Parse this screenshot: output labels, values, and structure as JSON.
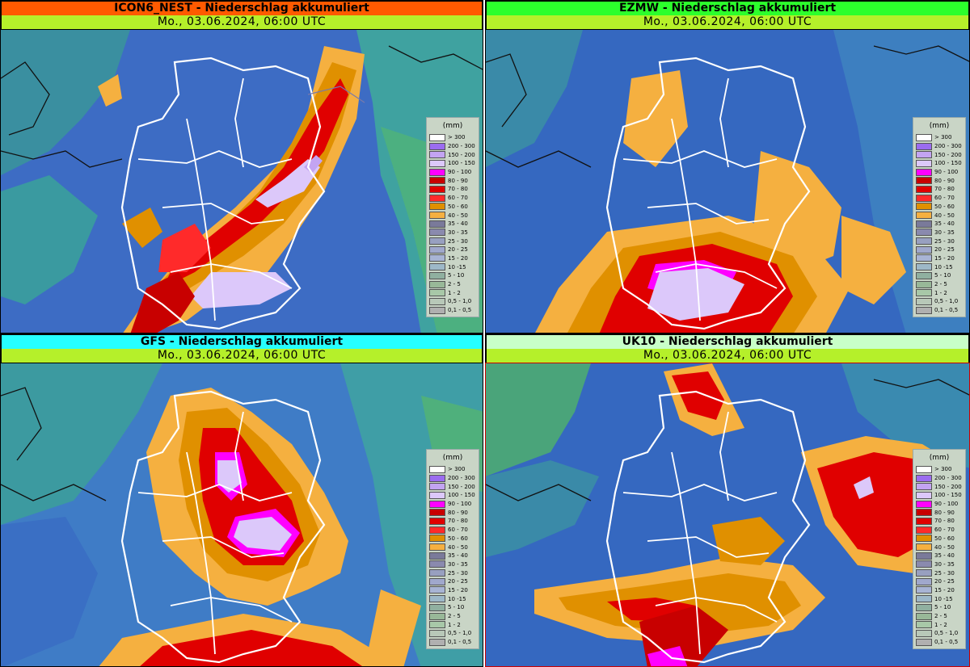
{
  "panels": [
    {
      "id": "icon",
      "model_title": "ICON6_NEST - Niederschlag akkumuliert",
      "date": "Mo., 03.06.2024, 06:00 UTC",
      "header_color": "#ff5a00"
    },
    {
      "id": "ezmw",
      "model_title": "EZMW - Niederschlag akkumuliert",
      "date": "Mo., 03.06.2024, 06:00 UTC",
      "header_color": "#2cff2c"
    },
    {
      "id": "gfs",
      "model_title": "GFS - Niederschlag akkumuliert",
      "date": "Mo., 03.06.2024, 06:00 UTC",
      "header_color": "#26ffff"
    },
    {
      "id": "uk10",
      "model_title": "UK10 - Niederschlag akkumuliert",
      "date": "Mo., 03.06.2024, 06:00 UTC",
      "header_color": "#c8ffc8"
    }
  ],
  "date_bar_color": "#b5f02a",
  "legend": {
    "unit": "(mm)",
    "items": [
      {
        "label": "> 300",
        "color": "#ffffff"
      },
      {
        "label": "200 - 300",
        "color": "#9b6cf0"
      },
      {
        "label": "150 - 200",
        "color": "#c3a4f2"
      },
      {
        "label": "100 - 150",
        "color": "#dcc8fa"
      },
      {
        "label": "90 - 100",
        "color": "#ff00ff"
      },
      {
        "label": "80 - 90",
        "color": "#c80000"
      },
      {
        "label": "70 - 80",
        "color": "#e00000"
      },
      {
        "label": "60 - 70",
        "color": "#ff2a2a"
      },
      {
        "label": "50 - 60",
        "color": "#e09000"
      },
      {
        "label": "40 - 50",
        "color": "#f5b040"
      },
      {
        "label": "35 - 40",
        "color": "#7a7a9a"
      },
      {
        "label": "30 - 35",
        "color": "#8a8aae"
      },
      {
        "label": "25 - 30",
        "color": "#98a0c0"
      },
      {
        "label": "20 - 25",
        "color": "#a0a8cc"
      },
      {
        "label": "15 - 20",
        "color": "#a8b4d4"
      },
      {
        "label": "10 -15",
        "color": "#9db8c8"
      },
      {
        "label": "5 - 10",
        "color": "#90b0a0"
      },
      {
        "label": "2 - 5",
        "color": "#98b898"
      },
      {
        "label": "1 - 2",
        "color": "#a8c8a8"
      },
      {
        "label": "0,5 - 1,0",
        "color": "#b8c8b8"
      },
      {
        "label": "0,1 - 0,5",
        "color": "#b0b0b0"
      }
    ]
  }
}
